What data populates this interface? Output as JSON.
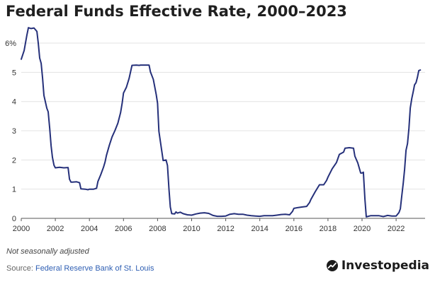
{
  "chart_data": {
    "type": "line",
    "title": "Federal Funds Effective Rate, 2000–2023",
    "xlabel": "",
    "ylabel": "",
    "xlim": [
      2000,
      2023.7
    ],
    "ylim": [
      0,
      6.8
    ],
    "grid": true,
    "legend": "none",
    "line_color": "#25307a",
    "y_ticks": [
      {
        "value": 0,
        "label": "0"
      },
      {
        "value": 1,
        "label": "1"
      },
      {
        "value": 2,
        "label": "2"
      },
      {
        "value": 3,
        "label": "3"
      },
      {
        "value": 4,
        "label": "4"
      },
      {
        "value": 5,
        "label": "5"
      },
      {
        "value": 6,
        "label": "6%"
      }
    ],
    "x_ticks": [
      {
        "value": 2000,
        "label": "2000"
      },
      {
        "value": 2002,
        "label": "2002"
      },
      {
        "value": 2004,
        "label": "2004"
      },
      {
        "value": 2006,
        "label": "2006"
      },
      {
        "value": 2008,
        "label": "2008"
      },
      {
        "value": 2010,
        "label": "2010"
      },
      {
        "value": 2012,
        "label": "2012"
      },
      {
        "value": 2014,
        "label": "2014"
      },
      {
        "value": 2016,
        "label": "2016"
      },
      {
        "value": 2018,
        "label": "2018"
      },
      {
        "value": 2020,
        "label": "2020"
      },
      {
        "value": 2022,
        "label": "2022"
      }
    ],
    "series": [
      {
        "points": [
          [
            2000.0,
            5.45
          ],
          [
            2000.17,
            5.75
          ],
          [
            2000.33,
            6.27
          ],
          [
            2000.42,
            6.53
          ],
          [
            2000.58,
            6.5
          ],
          [
            2000.75,
            6.52
          ],
          [
            2000.92,
            6.4
          ],
          [
            2001.0,
            5.98
          ],
          [
            2001.08,
            5.49
          ],
          [
            2001.17,
            5.31
          ],
          [
            2001.25,
            4.8
          ],
          [
            2001.33,
            4.21
          ],
          [
            2001.5,
            3.77
          ],
          [
            2001.58,
            3.65
          ],
          [
            2001.67,
            3.07
          ],
          [
            2001.75,
            2.49
          ],
          [
            2001.83,
            2.09
          ],
          [
            2001.92,
            1.82
          ],
          [
            2002.0,
            1.73
          ],
          [
            2002.25,
            1.75
          ],
          [
            2002.5,
            1.73
          ],
          [
            2002.75,
            1.74
          ],
          [
            2002.83,
            1.34
          ],
          [
            2002.92,
            1.24
          ],
          [
            2003.0,
            1.24
          ],
          [
            2003.25,
            1.25
          ],
          [
            2003.42,
            1.22
          ],
          [
            2003.5,
            1.01
          ],
          [
            2003.75,
            1.0
          ],
          [
            2003.92,
            0.98
          ],
          [
            2004.0,
            1.0
          ],
          [
            2004.25,
            1.0
          ],
          [
            2004.42,
            1.03
          ],
          [
            2004.5,
            1.26
          ],
          [
            2004.67,
            1.5
          ],
          [
            2004.83,
            1.76
          ],
          [
            2004.92,
            1.93
          ],
          [
            2005.0,
            2.16
          ],
          [
            2005.17,
            2.5
          ],
          [
            2005.33,
            2.79
          ],
          [
            2005.5,
            3.01
          ],
          [
            2005.67,
            3.26
          ],
          [
            2005.83,
            3.62
          ],
          [
            2005.92,
            3.94
          ],
          [
            2006.0,
            4.29
          ],
          [
            2006.17,
            4.49
          ],
          [
            2006.33,
            4.79
          ],
          [
            2006.5,
            5.24
          ],
          [
            2006.75,
            5.25
          ],
          [
            2006.92,
            5.24
          ],
          [
            2007.0,
            5.25
          ],
          [
            2007.25,
            5.25
          ],
          [
            2007.5,
            5.25
          ],
          [
            2007.58,
            5.02
          ],
          [
            2007.75,
            4.76
          ],
          [
            2007.92,
            4.24
          ],
          [
            2008.0,
            3.94
          ],
          [
            2008.08,
            2.98
          ],
          [
            2008.17,
            2.61
          ],
          [
            2008.33,
            1.98
          ],
          [
            2008.5,
            2.0
          ],
          [
            2008.58,
            1.81
          ],
          [
            2008.67,
            1.0
          ],
          [
            2008.75,
            0.39
          ],
          [
            2008.83,
            0.16
          ],
          [
            2009.0,
            0.15
          ],
          [
            2009.08,
            0.22
          ],
          [
            2009.17,
            0.18
          ],
          [
            2009.33,
            0.21
          ],
          [
            2009.5,
            0.16
          ],
          [
            2009.75,
            0.12
          ],
          [
            2010.0,
            0.11
          ],
          [
            2010.25,
            0.15
          ],
          [
            2010.5,
            0.18
          ],
          [
            2010.75,
            0.19
          ],
          [
            2011.0,
            0.17
          ],
          [
            2011.25,
            0.1
          ],
          [
            2011.5,
            0.07
          ],
          [
            2011.75,
            0.07
          ],
          [
            2012.0,
            0.08
          ],
          [
            2012.25,
            0.14
          ],
          [
            2012.5,
            0.16
          ],
          [
            2012.75,
            0.14
          ],
          [
            2013.0,
            0.14
          ],
          [
            2013.25,
            0.11
          ],
          [
            2013.5,
            0.09
          ],
          [
            2013.75,
            0.08
          ],
          [
            2014.0,
            0.07
          ],
          [
            2014.25,
            0.09
          ],
          [
            2014.5,
            0.09
          ],
          [
            2014.75,
            0.09
          ],
          [
            2015.0,
            0.11
          ],
          [
            2015.25,
            0.13
          ],
          [
            2015.5,
            0.14
          ],
          [
            2015.75,
            0.12
          ],
          [
            2015.92,
            0.24
          ],
          [
            2016.0,
            0.34
          ],
          [
            2016.25,
            0.37
          ],
          [
            2016.5,
            0.39
          ],
          [
            2016.75,
            0.41
          ],
          [
            2016.92,
            0.54
          ],
          [
            2017.0,
            0.65
          ],
          [
            2017.25,
            0.91
          ],
          [
            2017.5,
            1.15
          ],
          [
            2017.75,
            1.15
          ],
          [
            2017.92,
            1.3
          ],
          [
            2018.0,
            1.41
          ],
          [
            2018.25,
            1.7
          ],
          [
            2018.5,
            1.91
          ],
          [
            2018.67,
            2.19
          ],
          [
            2018.92,
            2.27
          ],
          [
            2019.0,
            2.4
          ],
          [
            2019.25,
            2.42
          ],
          [
            2019.5,
            2.4
          ],
          [
            2019.58,
            2.13
          ],
          [
            2019.75,
            1.9
          ],
          [
            2019.92,
            1.55
          ],
          [
            2020.0,
            1.55
          ],
          [
            2020.08,
            1.58
          ],
          [
            2020.17,
            0.65
          ],
          [
            2020.25,
            0.05
          ],
          [
            2020.5,
            0.09
          ],
          [
            2020.75,
            0.09
          ],
          [
            2021.0,
            0.09
          ],
          [
            2021.25,
            0.06
          ],
          [
            2021.5,
            0.1
          ],
          [
            2021.75,
            0.08
          ],
          [
            2022.0,
            0.08
          ],
          [
            2022.17,
            0.2
          ],
          [
            2022.25,
            0.33
          ],
          [
            2022.33,
            0.77
          ],
          [
            2022.42,
            1.21
          ],
          [
            2022.5,
            1.68
          ],
          [
            2022.58,
            2.33
          ],
          [
            2022.67,
            2.56
          ],
          [
            2022.75,
            3.08
          ],
          [
            2022.83,
            3.78
          ],
          [
            2022.92,
            4.1
          ],
          [
            2023.0,
            4.33
          ],
          [
            2023.08,
            4.57
          ],
          [
            2023.17,
            4.65
          ],
          [
            2023.25,
            4.83
          ],
          [
            2023.33,
            5.06
          ],
          [
            2023.42,
            5.08
          ]
        ]
      }
    ]
  },
  "footer": {
    "note": "Not seasonally adjusted",
    "source_prefix": "Source: ",
    "source_link": "Federal Reserve Bank of St. Louis",
    "brand": "Investopedia"
  },
  "colors": {
    "line": "#25307a",
    "grid": "#e3e3e3",
    "axis": "#555555",
    "link": "#2f5fb3"
  }
}
